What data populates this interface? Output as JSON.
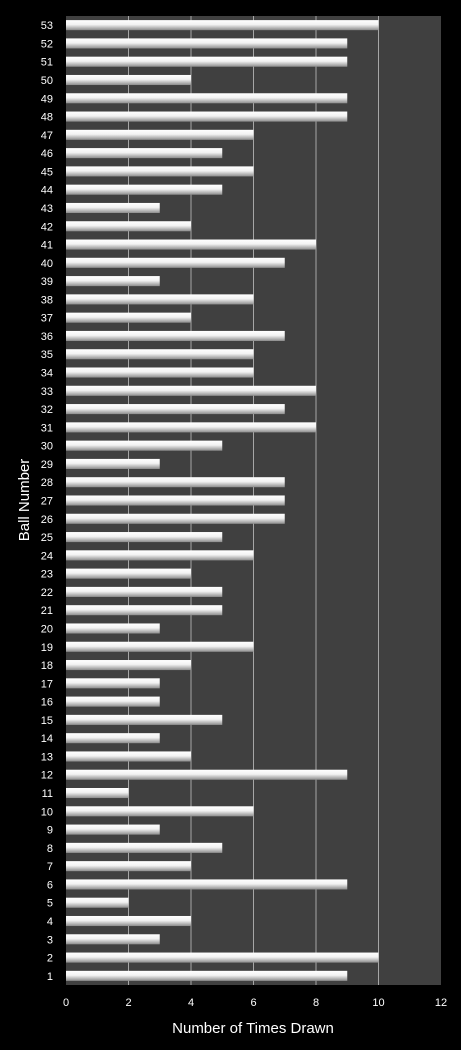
{
  "chart_data": {
    "type": "bar",
    "orientation": "horizontal",
    "title": "",
    "xlabel": "Number of Times Drawn",
    "ylabel": "Ball Number",
    "xlim": [
      0,
      12
    ],
    "xticks": [
      0,
      2,
      4,
      6,
      8,
      10,
      12
    ],
    "grid": "vertical",
    "legend": "none",
    "categories": [
      "1",
      "2",
      "3",
      "4",
      "5",
      "6",
      "7",
      "8",
      "9",
      "10",
      "11",
      "12",
      "13",
      "14",
      "15",
      "16",
      "17",
      "18",
      "19",
      "20",
      "21",
      "22",
      "23",
      "24",
      "25",
      "26",
      "27",
      "28",
      "29",
      "30",
      "31",
      "32",
      "33",
      "34",
      "35",
      "36",
      "37",
      "38",
      "39",
      "40",
      "41",
      "42",
      "43",
      "44",
      "45",
      "46",
      "47",
      "48",
      "49",
      "50",
      "51",
      "52",
      "53"
    ],
    "values": [
      9,
      10,
      3,
      4,
      2,
      9,
      4,
      5,
      3,
      6,
      2,
      9,
      4,
      3,
      5,
      3,
      3,
      4,
      6,
      3,
      5,
      5,
      4,
      6,
      5,
      7,
      7,
      7,
      3,
      5,
      8,
      7,
      8,
      6,
      6,
      7,
      4,
      6,
      3,
      7,
      8,
      4,
      3,
      5,
      6,
      5,
      6,
      9,
      9,
      4,
      9,
      9,
      10
    ],
    "colors": {
      "background": "#000000",
      "plot_area": "#404040",
      "gridline": "#a6a6a6",
      "bar_light": "#ffffff",
      "bar_dark": "#8c8c8c",
      "text": "#ffffff"
    }
  }
}
